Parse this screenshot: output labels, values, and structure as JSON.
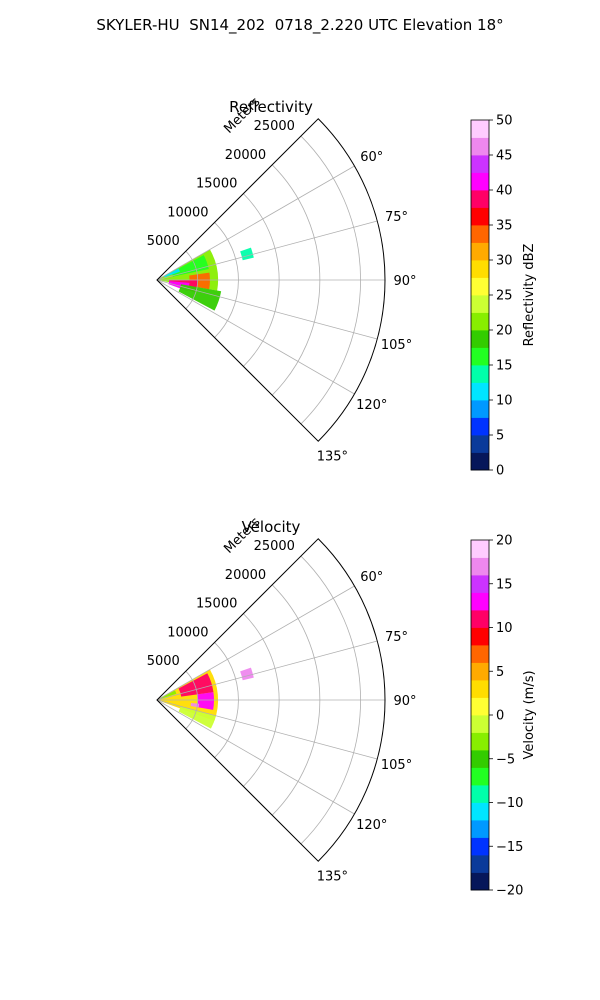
{
  "figure": {
    "suptitle": "SKYLER-HU  SN14_202  0718_2.220 UTC Elevation 18°"
  },
  "chart_data": [
    {
      "type": "heatmap",
      "projection": "polar-sector",
      "title": "Reflectivity",
      "radial_axis_label": "Meters",
      "radial_ticks": [
        5000,
        10000,
        15000,
        20000,
        25000
      ],
      "radial_tick_labels": [
        "5000",
        "10000",
        "15000",
        "20000",
        "25000"
      ],
      "r_max": 28000,
      "azimuth_range_deg": [
        45,
        135
      ],
      "azimuth_ticks": [
        60,
        75,
        90,
        105,
        120,
        135
      ],
      "azimuth_tick_labels": [
        "60°",
        "75°",
        "90°",
        "105°",
        "120°",
        "135°"
      ],
      "grid": true,
      "colorbar": {
        "label": "Reflectivity dBZ",
        "range": [
          0,
          50
        ],
        "ticks": [
          0,
          5,
          10,
          15,
          20,
          25,
          30,
          35,
          40,
          45,
          50
        ],
        "tick_labels": [
          "0",
          "5",
          "10",
          "15",
          "20",
          "25",
          "30",
          "35",
          "40",
          "45",
          "50"
        ],
        "colormap": [
          "#06175a",
          "#0a3a9a",
          "#0033ff",
          "#0099ff",
          "#00e5ff",
          "#00ffaa",
          "#22ff22",
          "#33cc00",
          "#88ee00",
          "#ccff33",
          "#ffff33",
          "#ffdd00",
          "#ffaa00",
          "#ff6600",
          "#ff0000",
          "#ff0066",
          "#ff00ff",
          "#cc33ff",
          "#ee88ee",
          "#ffccff"
        ]
      },
      "echo_regions": [
        {
          "az": [
            60,
            100
          ],
          "r": [
            0,
            7500
          ],
          "value": 20
        },
        {
          "az": [
            62,
            78
          ],
          "r": [
            2000,
            6500
          ],
          "value": 16
        },
        {
          "az": [
            82,
            100
          ],
          "r": [
            4000,
            6500
          ],
          "value": 33
        },
        {
          "az": [
            90,
            108
          ],
          "r": [
            1500,
            5000
          ],
          "value": 38
        },
        {
          "az": [
            95,
            110
          ],
          "r": [
            1500,
            4000
          ],
          "value": 42
        },
        {
          "az": [
            100,
            118
          ],
          "r": [
            3000,
            8000
          ],
          "value": 19
        },
        {
          "az": [
            62,
            70
          ],
          "r": [
            1000,
            3000
          ],
          "value": 10
        },
        {
          "az": [
            71,
            77
          ],
          "r": [
            10800,
            12200
          ],
          "value": 14
        }
      ]
    },
    {
      "type": "heatmap",
      "projection": "polar-sector",
      "title": "Velocity",
      "radial_axis_label": "Meters",
      "radial_ticks": [
        5000,
        10000,
        15000,
        20000,
        25000
      ],
      "radial_tick_labels": [
        "5000",
        "10000",
        "15000",
        "20000",
        "25000"
      ],
      "r_max": 28000,
      "azimuth_range_deg": [
        45,
        135
      ],
      "azimuth_ticks": [
        60,
        75,
        90,
        105,
        120,
        135
      ],
      "azimuth_tick_labels": [
        "60°",
        "75°",
        "90°",
        "105°",
        "120°",
        "135°"
      ],
      "grid": true,
      "colorbar": {
        "label": "Velocity (m/s)",
        "range": [
          -20,
          20
        ],
        "ticks": [
          -20,
          -15,
          -10,
          -5,
          0,
          5,
          10,
          15,
          20
        ],
        "tick_labels": [
          "−20",
          "−15",
          "−10",
          "−5",
          "0",
          "5",
          "10",
          "15",
          "20"
        ],
        "colormap": [
          "#06175a",
          "#0a3a9a",
          "#0033ff",
          "#0099ff",
          "#00e5ff",
          "#00ffaa",
          "#22ff22",
          "#33cc00",
          "#88ee00",
          "#ccff33",
          "#ffff33",
          "#ffdd00",
          "#ffaa00",
          "#ff6600",
          "#ff0000",
          "#ff0066",
          "#ff00ff",
          "#cc33ff",
          "#ee88ee",
          "#ffccff"
        ]
      },
      "echo_regions": [
        {
          "az": [
            60,
            110
          ],
          "r": [
            0,
            7500
          ],
          "value": 2
        },
        {
          "az": [
            62,
            82
          ],
          "r": [
            3000,
            7000
          ],
          "value": 10
        },
        {
          "az": [
            82,
            100
          ],
          "r": [
            5000,
            7000
          ],
          "value": 12
        },
        {
          "az": [
            95,
            100
          ],
          "r": [
            4200,
            5200
          ],
          "value": 16
        },
        {
          "az": [
            62,
            72
          ],
          "r": [
            500,
            2500
          ],
          "value": -3
        },
        {
          "az": [
            105,
            118
          ],
          "r": [
            3000,
            7500
          ],
          "value": -1
        },
        {
          "az": [
            71,
            77
          ],
          "r": [
            10800,
            12200
          ],
          "value": 16
        }
      ]
    }
  ]
}
